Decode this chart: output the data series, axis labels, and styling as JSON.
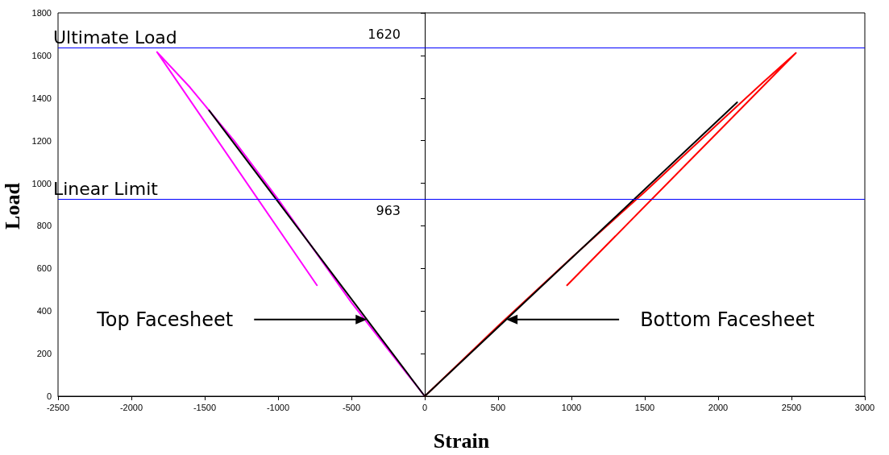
{
  "chart_data": {
    "type": "line",
    "xlabel": "Strain",
    "ylabel": "Load",
    "xlim": [
      -2500,
      3000
    ],
    "xticks": [
      -2500,
      -2000,
      -1500,
      -1000,
      -500,
      0,
      500,
      1000,
      1500,
      2000,
      2500,
      3000
    ],
    "ylim": [
      0,
      1800
    ],
    "yticks": [
      0,
      200,
      400,
      600,
      800,
      1000,
      1200,
      1400,
      1600,
      1800
    ],
    "marker": "none",
    "line_style": "solid",
    "series": [
      {
        "color": "#ff00ff",
        "x": [
          0,
          -500,
          -1000,
          -1300,
          -1600,
          -1825,
          -735
        ],
        "values": [
          0,
          440,
          925,
          1200,
          1450,
          1616,
          521
        ]
      },
      {
        "color": "#000000",
        "x": [
          0,
          -1470
        ],
        "values": [
          0,
          1342
        ]
      },
      {
        "color": "#ff0000",
        "x": [
          0,
          500,
          1000,
          1500,
          2000,
          2300,
          2530,
          970
        ],
        "values": [
          0,
          330,
          650,
          960,
          1280,
          1470,
          1612,
          521
        ]
      },
      {
        "color": "#000000",
        "x": [
          0,
          2130
        ],
        "values": [
          0,
          1380
        ]
      }
    ],
    "ref_lines": [
      {
        "axis": "y",
        "value": 1635,
        "label": "Ultimate Load",
        "color": "#0000ff"
      },
      {
        "axis": "y",
        "value": 926,
        "label": "Linear Limit",
        "color": "#0000ff"
      }
    ],
    "annotations": [
      "1620",
      "963",
      "Top Facesheet",
      "Bottom Facesheet"
    ]
  }
}
